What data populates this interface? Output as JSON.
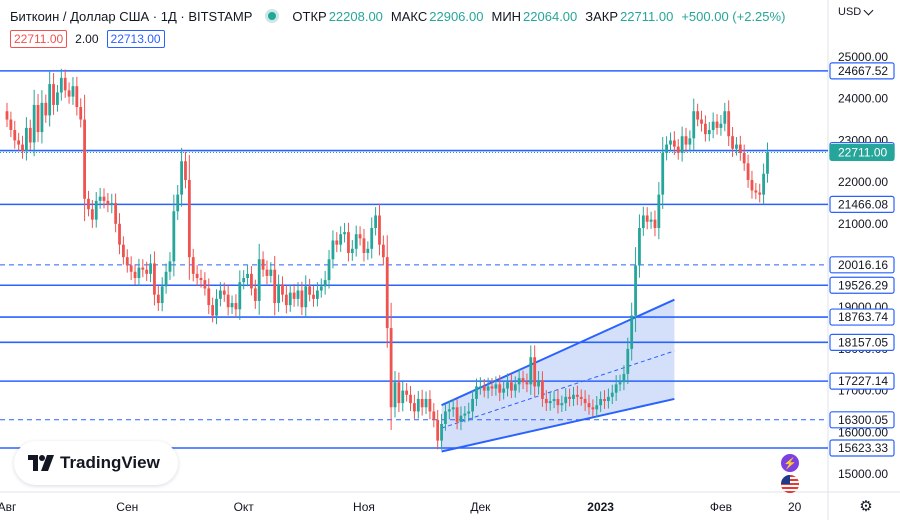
{
  "header": {
    "symbol": "Биткоин / Доллар США · 1Д · BITSTAMP",
    "open_label": "ОТКР",
    "open_value": "22208.00",
    "high_label": "МАКС",
    "high_value": "22906.00",
    "low_label": "МИН",
    "low_value": "22064.00",
    "close_label": "ЗАКР",
    "close_value": "22711.00",
    "change": "+500.00 (+2.25%)",
    "bid": "22711.00",
    "spread": "2.00",
    "ask": "22713.00",
    "currency": "USD"
  },
  "logo_text": "TradingView",
  "settings_icon": "gear-icon",
  "colors": {
    "up": "#26a69a",
    "down": "#ef5350",
    "level": "#2962ff",
    "channel_fill": "#c5d4f8"
  },
  "chart_data": {
    "type": "candlestick",
    "y_ticks": [
      15000,
      16000,
      17000,
      18000,
      19000,
      20000,
      21000,
      22000,
      23000,
      24000,
      25000
    ],
    "ylim": [
      14500,
      25400
    ],
    "x_labels": [
      {
        "label": "Авг",
        "day": 0
      },
      {
        "label": "Сен",
        "day": 31
      },
      {
        "label": "Окт",
        "day": 61
      },
      {
        "label": "Ноя",
        "day": 92
      },
      {
        "label": "Дек",
        "day": 122
      },
      {
        "label": "2023",
        "day": 153,
        "bold": true
      },
      {
        "label": "Фев",
        "day": 184
      },
      {
        "label": "20",
        "day": 203
      }
    ],
    "levels": [
      {
        "value": 24667.52,
        "style": "solid"
      },
      {
        "value": 22756.06,
        "style": "solid"
      },
      {
        "value": 22711.0,
        "style": "current"
      },
      {
        "value": 21466.08,
        "style": "solid"
      },
      {
        "value": 20016.16,
        "style": "dashed"
      },
      {
        "value": 19526.29,
        "style": "solid"
      },
      {
        "value": 18763.74,
        "style": "solid"
      },
      {
        "value": 18157.05,
        "style": "solid"
      },
      {
        "value": 17227.14,
        "style": "solid"
      },
      {
        "value": 16300.05,
        "style": "dashed"
      },
      {
        "value": 15623.33,
        "style": "solid"
      }
    ],
    "channel": {
      "upper": [
        [
          112,
          16650
        ],
        [
          172,
          19180
        ]
      ],
      "lower": [
        [
          112,
          15540
        ],
        [
          172,
          16800
        ]
      ],
      "mid": [
        [
          112,
          16100
        ],
        [
          172,
          17950
        ]
      ]
    },
    "closes": [
      23500,
      23250,
      23000,
      22900,
      22750,
      23300,
      22950,
      23850,
      23200,
      23900,
      23600,
      24350,
      23850,
      24150,
      24500,
      24200,
      24050,
      24300,
      23800,
      23500,
      21600,
      21350,
      21100,
      21550,
      21650,
      21550,
      21450,
      21500,
      21000,
      20500,
      20200,
      20000,
      19850,
      19700,
      19950,
      19900,
      19800,
      20050,
      19300,
      19100,
      19500,
      19850,
      20100,
      21300,
      21700,
      22500,
      22050,
      20200,
      19800,
      19700,
      19650,
      19450,
      19050,
      18800,
      19200,
      19400,
      19300,
      19000,
      19100,
      18950,
      19600,
      19700,
      19800,
      19450,
      19150,
      20150,
      19900,
      19750,
      19900,
      19100,
      19550,
      19300,
      19050,
      19350,
      19200,
      19400,
      19000,
      19500,
      19300,
      19200,
      19400,
      19500,
      19650,
      20150,
      20600,
      20500,
      20750,
      20800,
      20300,
      20400,
      20750,
      20650,
      20300,
      20400,
      20900,
      21200,
      20500,
      20200,
      18500,
      16600,
      17200,
      16700,
      17000,
      16900,
      16700,
      16500,
      16800,
      16600,
      16800,
      16500,
      16300,
      15800,
      16200,
      16500,
      16550,
      16600,
      16250,
      16400,
      16450,
      16500,
      16800,
      17100,
      17100,
      17000,
      17100,
      17050,
      17150,
      16950,
      17050,
      17200,
      17000,
      17150,
      17300,
      17200,
      17150,
      17800,
      17100,
      17250,
      16800,
      16700,
      16750,
      16800,
      16650,
      16700,
      16850,
      16800,
      16900,
      16850,
      16800,
      16700,
      16600,
      16550,
      16650,
      16800,
      16750,
      16850,
      16950,
      17150,
      17200,
      17400,
      18000,
      18800,
      20000,
      20900,
      21200,
      21050,
      21100,
      20900,
      21700,
      22700,
      22900,
      23000,
      22850,
      22700,
      23100,
      22900,
      23050,
      23700,
      23500,
      23400,
      23150,
      23250,
      23450,
      23300,
      23400,
      23700,
      23100,
      22800,
      22900,
      22700,
      22450,
      22050,
      21800,
      21750,
      21700,
      22200,
      22711
    ]
  }
}
